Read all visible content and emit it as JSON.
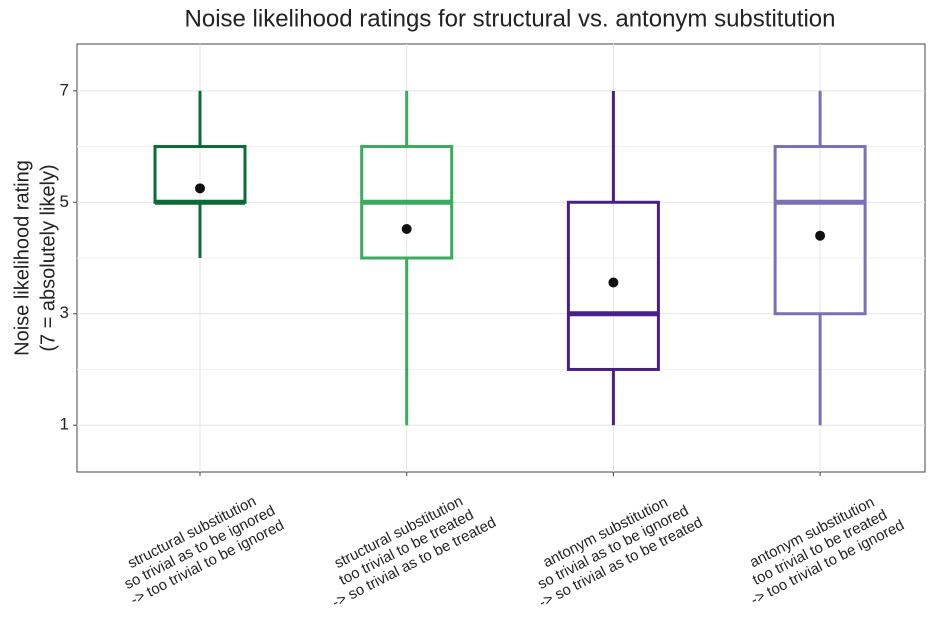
{
  "chart_data": {
    "type": "box",
    "title": "Noise likelihood ratings for structural vs. antonym substitution",
    "ylabel": [
      "Noise likelihood rating",
      "(7 = absolutely likely)"
    ],
    "categories": [
      [
        "structural substitution",
        "so trivial as to be ignored",
        "-> too trivial to be ignored"
      ],
      [
        "structural substitution",
        "too trivial to be treated",
        "-> so trivial as to be treated"
      ],
      [
        "antonym substitution",
        "so trivial as to be ignored",
        "-> so trivial as to be treated"
      ],
      [
        "antonym substitution",
        "too trivial to be treated",
        "-> too trivial to be ignored"
      ]
    ],
    "boxes": [
      {
        "low": 4,
        "q1": 5,
        "median": 5,
        "q3": 6,
        "high": 7,
        "mean": 5.25,
        "color": "#0b6b35"
      },
      {
        "low": 1,
        "q1": 4,
        "median": 5,
        "q3": 6,
        "high": 7,
        "mean": 4.52,
        "color": "#3aaa5c"
      },
      {
        "low": 1,
        "q1": 2,
        "median": 3,
        "q3": 5,
        "high": 7,
        "mean": 3.56,
        "color": "#4b1f8a"
      },
      {
        "low": 1,
        "q1": 3,
        "median": 5,
        "q3": 6,
        "high": 7,
        "mean": 4.4,
        "color": "#7b6fb5"
      }
    ],
    "ylim": [
      0.16,
      7.84
    ],
    "yticks": [
      1,
      3,
      5,
      7
    ],
    "minor_yticks": [
      2,
      4,
      6
    ],
    "grid": true
  }
}
